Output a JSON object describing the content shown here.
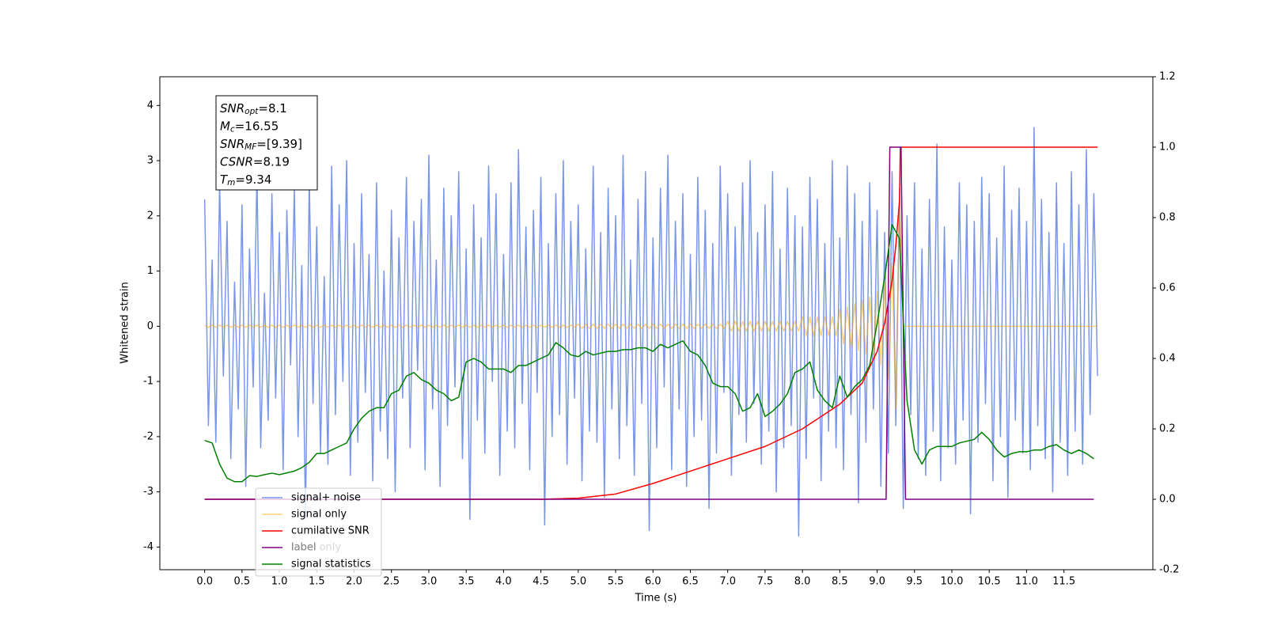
{
  "chart_data": {
    "type": "line",
    "xlabel": "Time (s)",
    "ylabel": "Whitened strain",
    "xlim": [
      -0.6,
      12.69
    ],
    "ylim": [
      -4.41,
      4.52
    ],
    "y2lim": [
      -0.2,
      1.2
    ],
    "xticks": [
      {
        "value": 0,
        "label": "0.0"
      },
      0.5,
      {
        "value": 1,
        "label": "1.0"
      },
      1.5,
      {
        "value": 2,
        "label": "2.0"
      },
      2.5,
      {
        "value": 3,
        "label": "3.0"
      },
      3.5,
      {
        "value": 4,
        "label": "4.0"
      },
      4.5,
      {
        "value": 5,
        "label": "5.0"
      },
      5.5,
      {
        "value": 6,
        "label": "6.0"
      },
      6.5,
      {
        "value": 7,
        "label": "7.0"
      },
      7.5,
      {
        "value": 8,
        "label": "8.0"
      },
      8.5,
      {
        "value": 9,
        "label": "9.0"
      },
      9.5,
      {
        "value": 10,
        "label": "10.0"
      },
      10.5,
      {
        "value": 11,
        "label": "11.0"
      },
      11.5
    ],
    "yticks": [
      -4,
      -3,
      -2,
      -1,
      0,
      1,
      2,
      3,
      4
    ],
    "y2ticks": [
      -0.2,
      {
        "value": 0,
        "label": "0.0"
      },
      0.2,
      0.4,
      0.6,
      0.8,
      {
        "value": 1,
        "label": "1.0"
      },
      1.2
    ],
    "legend": "lower left",
    "legend_overlay": "label only",
    "annotations": [
      {
        "symbol": "SNR",
        "subscript": "opt",
        "text": "=8.1"
      },
      {
        "symbol": "M",
        "subscript": "c",
        "text": "=16.55"
      },
      {
        "symbol": "SNR",
        "subscript": "MF",
        "text": "=[9.39]"
      },
      {
        "symbol": "CSNR",
        "subscript": "",
        "text": "=8.19"
      },
      {
        "symbol": "T",
        "subscript": "m",
        "text": "=9.34"
      }
    ],
    "x": [
      0,
      0.05,
      0.1,
      0.15,
      0.2,
      0.25,
      0.3,
      0.35,
      0.4,
      0.45,
      0.5,
      0.55,
      0.6,
      0.65,
      0.7,
      0.75,
      0.8,
      0.85,
      0.9,
      0.95,
      1,
      1.05,
      1.1,
      1.15,
      1.2,
      1.25,
      1.3,
      1.35,
      1.4,
      1.45,
      1.5,
      1.55,
      1.6,
      1.65,
      1.7,
      1.75,
      1.8,
      1.85,
      1.9,
      1.95,
      2,
      2.05,
      2.1,
      2.15,
      2.2,
      2.25,
      2.3,
      2.35,
      2.4,
      2.45,
      2.5,
      2.55,
      2.6,
      2.65,
      2.7,
      2.75,
      2.8,
      2.85,
      2.9,
      2.95,
      3,
      3.05,
      3.1,
      3.15,
      3.2,
      3.25,
      3.3,
      3.35,
      3.4,
      3.45,
      3.5,
      3.55,
      3.6,
      3.65,
      3.7,
      3.75,
      3.8,
      3.85,
      3.9,
      3.95,
      4,
      4.05,
      4.1,
      4.15,
      4.2,
      4.25,
      4.3,
      4.35,
      4.4,
      4.45,
      4.5,
      4.55,
      4.6,
      4.65,
      4.7,
      4.75,
      4.8,
      4.85,
      4.9,
      4.95,
      5,
      5.05,
      5.1,
      5.15,
      5.2,
      5.25,
      5.3,
      5.35,
      5.4,
      5.45,
      5.5,
      5.55,
      5.6,
      5.65,
      5.7,
      5.75,
      5.8,
      5.85,
      5.9,
      5.95,
      6,
      6.05,
      6.1,
      6.15,
      6.2,
      6.25,
      6.3,
      6.35,
      6.4,
      6.45,
      6.5,
      6.55,
      6.6,
      6.65,
      6.7,
      6.75,
      6.8,
      6.85,
      6.9,
      6.95,
      7,
      7.05,
      7.1,
      7.15,
      7.2,
      7.25,
      7.3,
      7.35,
      7.4,
      7.45,
      7.5,
      7.55,
      7.6,
      7.65,
      7.7,
      7.75,
      7.8,
      7.85,
      7.9,
      7.95,
      8,
      8.05,
      8.1,
      8.15,
      8.2,
      8.25,
      8.3,
      8.35,
      8.4,
      8.45,
      8.5,
      8.55,
      8.6,
      8.65,
      8.7,
      8.75,
      8.8,
      8.85,
      8.9,
      8.95,
      9,
      9.05,
      9.1,
      9.15,
      9.2,
      9.25,
      9.3,
      9.35,
      9.4,
      9.45,
      9.5,
      9.55,
      9.6,
      9.65,
      9.7,
      9.75,
      9.8,
      9.85,
      9.9,
      9.95,
      10,
      10.05,
      10.1,
      10.15,
      10.2,
      10.25,
      10.3,
      10.35,
      10.4,
      10.45,
      10.5,
      10.55,
      10.6,
      10.65,
      10.7,
      10.75,
      10.8,
      10.85,
      10.9,
      10.95,
      11,
      11.05,
      11.1,
      11.15,
      11.2,
      11.25,
      11.3,
      11.35,
      11.4,
      11.45,
      11.5,
      11.55,
      11.6,
      11.65,
      11.7,
      11.75,
      11.8,
      11.85,
      11.9,
      11.95
    ],
    "series": [
      {
        "name": "signal+ noise",
        "color": "#7a96e8",
        "values": [
          2.3,
          -1.8,
          1.2,
          -2.1,
          2.6,
          -0.9,
          1.9,
          -2.4,
          0.8,
          -1.5,
          2.2,
          -2.9,
          1.4,
          -1.1,
          2.8,
          -2.2,
          0.6,
          -1.7,
          2.4,
          -1.3,
          1.7,
          -2.6,
          2.1,
          -0.7,
          2.5,
          -2.0,
          1.1,
          -3.5,
          2.7,
          -1.4,
          1.8,
          -2.3,
          0.9,
          -2.5,
          2.9,
          -1.6,
          2.2,
          -1.0,
          3.0,
          -2.7,
          1.5,
          -2.1,
          2.4,
          -1.2,
          1.3,
          -2.8,
          2.6,
          -1.9,
          1.0,
          -2.4,
          2.1,
          -3.0,
          1.6,
          -1.3,
          2.7,
          -2.2,
          1.9,
          -0.8,
          2.3,
          -2.6,
          3.1,
          -1.5,
          1.2,
          -2.9,
          2.5,
          -1.8,
          2.0,
          -1.1,
          2.8,
          -2.4,
          1.4,
          -3.5,
          2.2,
          -1.7,
          1.6,
          -2.3,
          2.9,
          -1.0,
          2.4,
          -2.7,
          1.3,
          -1.9,
          2.6,
          -2.2,
          3.2,
          -1.4,
          1.8,
          -2.6,
          2.1,
          -1.2,
          2.7,
          -3.6,
          1.5,
          -2.0,
          2.4,
          -1.6,
          3.0,
          -2.5,
          1.9,
          -1.3,
          2.2,
          -2.8,
          1.4,
          -1.9,
          2.9,
          -2.1,
          1.7,
          -3.1,
          2.5,
          -1.5,
          2.0,
          -2.4,
          3.1,
          -1.8,
          1.2,
          -2.7,
          2.3,
          -1.4,
          2.8,
          -3.7,
          1.6,
          -2.2,
          2.5,
          -1.1,
          3.1,
          -2.6,
          1.9,
          -1.5,
          2.4,
          -2.9,
          1.3,
          -2.0,
          2.7,
          -1.7,
          2.1,
          -3.3,
          1.5,
          -2.3,
          2.9,
          -1.2,
          2.4,
          -2.7,
          1.8,
          -1.6,
          2.6,
          -2.1,
          3.0,
          -1.4,
          1.7,
          -2.5,
          2.2,
          -1.9,
          2.8,
          -3.0,
          1.4,
          -2.2,
          2.5,
          -1.8,
          2.0,
          -3.8,
          1.8,
          -2.4,
          2.7,
          -1.3,
          2.3,
          -2.8,
          1.5,
          -1.9,
          3.0,
          -2.2,
          1.6,
          -2.6,
          2.9,
          -1.6,
          2.4,
          -3.2,
          1.9,
          -2.1,
          2.6,
          -1.5,
          2.1,
          -2.9,
          1.7,
          -2.3,
          2.8,
          -1.8,
          2.5,
          -3.3,
          2.0,
          -1.6,
          2.6,
          -2.4,
          1.4,
          -2.7,
          2.3,
          -1.9,
          3.3,
          -2.8,
          1.8,
          -2.2,
          1.2,
          -2.5,
          2.6,
          -1.7,
          2.2,
          -3.4,
          1.9,
          -2.1,
          2.7,
          -1.4,
          2.4,
          -2.8,
          1.6,
          -2.0,
          2.9,
          -3.1,
          2.1,
          -1.7,
          2.5,
          -2.3,
          1.9,
          -2.6,
          3.6,
          -1.8,
          2.3,
          -2.4,
          1.7,
          -3.0,
          2.6,
          -2.1,
          1.5,
          -2.7,
          2.8,
          -1.9,
          2.2,
          -2.5,
          3.2,
          -1.6,
          2.4,
          -0.9
        ]
      },
      {
        "name": "signal only",
        "color": "#ffa500",
        "values": [
          0.02,
          -0.02,
          0.02,
          -0.02,
          0.02,
          -0.02,
          0.02,
          -0.02,
          0.02,
          -0.02,
          0.02,
          -0.02,
          0.02,
          -0.02,
          0.02,
          -0.02,
          0.02,
          -0.02,
          0.02,
          -0.02,
          0.02,
          -0.02,
          0.02,
          -0.02,
          0.02,
          -0.02,
          0.02,
          -0.02,
          0.02,
          -0.02,
          0.02,
          -0.02,
          0.02,
          -0.02,
          0.02,
          -0.02,
          0.02,
          -0.02,
          0.02,
          -0.02,
          0.02,
          -0.02,
          0.02,
          -0.02,
          0.02,
          -0.02,
          0.02,
          -0.02,
          0.02,
          -0.02,
          0.02,
          -0.02,
          0.02,
          -0.02,
          0.02,
          -0.02,
          0.02,
          -0.02,
          0.02,
          -0.02,
          0.02,
          -0.02,
          0.02,
          -0.02,
          0.02,
          -0.02,
          0.02,
          -0.02,
          0.02,
          -0.02,
          0.02,
          -0.02,
          0.02,
          -0.02,
          0.02,
          -0.02,
          0.02,
          -0.02,
          0.02,
          -0.02,
          0.02,
          -0.02,
          0.02,
          -0.02,
          0.02,
          -0.02,
          0.02,
          -0.02,
          0.02,
          -0.02,
          0.02,
          -0.02,
          0.02,
          -0.02,
          0.02,
          -0.02,
          0.02,
          -0.02,
          0.02,
          -0.02,
          0.04,
          -0.04,
          0.04,
          -0.04,
          0.04,
          -0.04,
          0.04,
          -0.04,
          0.04,
          -0.04,
          0.04,
          -0.04,
          0.04,
          -0.04,
          0.04,
          -0.04,
          0.04,
          -0.04,
          0.04,
          -0.04,
          0.04,
          -0.04,
          0.04,
          -0.04,
          0.04,
          -0.04,
          0.04,
          -0.04,
          0.04,
          -0.04,
          0.04,
          -0.04,
          0.04,
          -0.04,
          0.04,
          -0.04,
          0.04,
          -0.04,
          0.04,
          -0.04,
          0.09,
          -0.09,
          0.09,
          -0.09,
          0.09,
          -0.09,
          0.09,
          -0.09,
          0.09,
          -0.09,
          0.09,
          -0.09,
          0.09,
          -0.09,
          0.09,
          -0.09,
          0.09,
          -0.09,
          0.09,
          -0.09,
          0.17,
          -0.17,
          0.17,
          -0.17,
          0.17,
          -0.17,
          0.17,
          -0.17,
          0.17,
          -0.17,
          0.3,
          -0.32,
          0.35,
          -0.38,
          0.41,
          -0.44,
          0.47,
          -0.5,
          0.53,
          -0.57,
          0.62,
          -0.7,
          0.8,
          -0.95,
          1.15,
          -1.5,
          2.3,
          0,
          0,
          0,
          0,
          0,
          0,
          0,
          0,
          0,
          0,
          0,
          0,
          0,
          0,
          0,
          0,
          0,
          0,
          0,
          0,
          0,
          0,
          0,
          0,
          0,
          0,
          0,
          0,
          0,
          0,
          0,
          0,
          0,
          0,
          0,
          0,
          0,
          0,
          0,
          0,
          0,
          0,
          0,
          0,
          0,
          0,
          0,
          0,
          0,
          0,
          0,
          0,
          0
        ]
      },
      {
        "name": "cumilative SNR",
        "color": "#ff0000",
        "axis": "y2",
        "x": [
          0,
          4.5,
          5,
          5.5,
          6,
          6.5,
          7,
          7.5,
          8,
          8.5,
          8.8,
          9,
          9.1,
          9.2,
          9.25,
          9.3,
          9.31,
          11.95
        ],
        "values": [
          0,
          0,
          0.003,
          0.015,
          0.045,
          0.08,
          0.115,
          0.15,
          0.2,
          0.27,
          0.33,
          0.42,
          0.5,
          0.62,
          0.72,
          0.85,
          1,
          1
        ]
      },
      {
        "name": "label",
        "color": "#800080",
        "axis": "y2",
        "x": [
          0,
          9.12,
          9.17,
          9.32,
          9.38,
          11.9
        ],
        "values": [
          0,
          0,
          1,
          1,
          0,
          0
        ]
      },
      {
        "name": "signal statistics",
        "color": "#008000",
        "axis": "y2",
        "x": [
          0,
          0.1,
          0.2,
          0.3,
          0.4,
          0.5,
          0.6,
          0.7,
          0.8,
          0.9,
          1,
          1.1,
          1.2,
          1.3,
          1.4,
          1.5,
          1.6,
          1.7,
          1.8,
          1.9,
          2,
          2.1,
          2.2,
          2.3,
          2.4,
          2.5,
          2.6,
          2.7,
          2.8,
          2.9,
          3,
          3.1,
          3.2,
          3.3,
          3.4,
          3.5,
          3.6,
          3.7,
          3.8,
          3.9,
          4,
          4.1,
          4.2,
          4.3,
          4.4,
          4.5,
          4.6,
          4.7,
          4.8,
          4.9,
          5,
          5.1,
          5.2,
          5.3,
          5.4,
          5.5,
          5.6,
          5.7,
          5.8,
          5.9,
          6,
          6.1,
          6.2,
          6.3,
          6.4,
          6.5,
          6.6,
          6.7,
          6.8,
          6.9,
          7,
          7.1,
          7.2,
          7.3,
          7.4,
          7.5,
          7.6,
          7.7,
          7.8,
          7.9,
          8,
          8.1,
          8.2,
          8.3,
          8.4,
          8.5,
          8.6,
          8.7,
          8.8,
          8.9,
          9,
          9.1,
          9.2,
          9.3,
          9.4,
          9.5,
          9.6,
          9.7,
          9.8,
          9.9,
          10,
          10.1,
          10.2,
          10.3,
          10.4,
          10.5,
          10.6,
          10.7,
          10.8,
          10.9,
          11,
          11.1,
          11.2,
          11.3,
          11.4,
          11.5,
          11.6,
          11.7,
          11.8,
          11.9
        ],
        "values": [
          0.167,
          0.16,
          0.1,
          0.06,
          0.05,
          0.05,
          0.067,
          0.065,
          0.07,
          0.074,
          0.07,
          0.075,
          0.08,
          0.09,
          0.105,
          0.13,
          0.13,
          0.14,
          0.15,
          0.16,
          0.2,
          0.23,
          0.25,
          0.26,
          0.26,
          0.3,
          0.31,
          0.35,
          0.36,
          0.34,
          0.33,
          0.31,
          0.3,
          0.28,
          0.29,
          0.39,
          0.4,
          0.39,
          0.37,
          0.37,
          0.37,
          0.36,
          0.38,
          0.38,
          0.39,
          0.4,
          0.41,
          0.445,
          0.43,
          0.41,
          0.405,
          0.42,
          0.41,
          0.415,
          0.42,
          0.42,
          0.425,
          0.425,
          0.43,
          0.43,
          0.42,
          0.44,
          0.43,
          0.44,
          0.45,
          0.42,
          0.41,
          0.38,
          0.33,
          0.32,
          0.32,
          0.3,
          0.25,
          0.26,
          0.3,
          0.235,
          0.25,
          0.27,
          0.3,
          0.36,
          0.37,
          0.39,
          0.31,
          0.28,
          0.26,
          0.35,
          0.29,
          0.32,
          0.34,
          0.38,
          0.5,
          0.63,
          0.78,
          0.74,
          0.28,
          0.14,
          0.1,
          0.14,
          0.15,
          0.15,
          0.15,
          0.16,
          0.165,
          0.17,
          0.19,
          0.17,
          0.14,
          0.12,
          0.13,
          0.135,
          0.135,
          0.14,
          0.14,
          0.15,
          0.155,
          0.14,
          0.13,
          0.14,
          0.13,
          0.115
        ]
      }
    ]
  }
}
